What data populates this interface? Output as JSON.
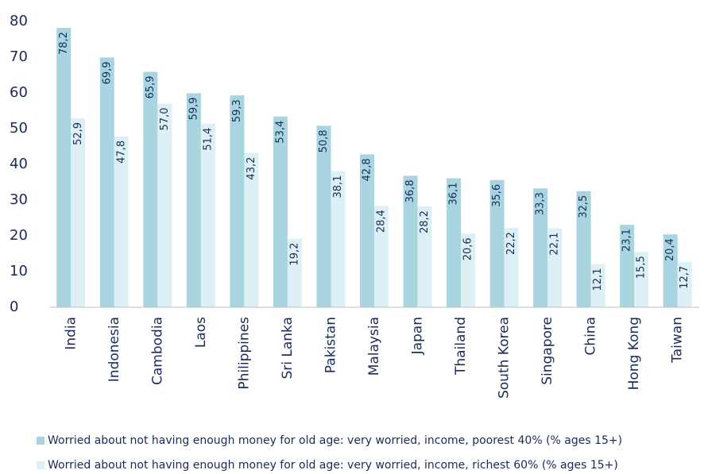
{
  "chart_data": {
    "type": "bar",
    "categories": [
      "India",
      "Indonesia",
      "Cambodia",
      "Laos",
      "Philippines",
      "Sri Lanka",
      "Pakistan",
      "Malaysia",
      "Japan",
      "Thailand",
      "South Korea",
      "Singapore",
      "China",
      "Hong Kong",
      "Taiwan"
    ],
    "series": [
      {
        "name": "Worried about not having enough money for old age: very worried, income, poorest 40% (% ages 15+)",
        "color": "#a9d5e1",
        "values": [
          78.2,
          69.9,
          65.9,
          59.9,
          59.3,
          53.4,
          50.8,
          42.8,
          36.8,
          36.1,
          35.6,
          33.3,
          32.5,
          23.1,
          20.4
        ],
        "value_labels": [
          "78,2",
          "69,9",
          "65,9",
          "59,9",
          "59,3",
          "53,4",
          "50,8",
          "42,8",
          "36,8",
          "36,1",
          "35,6",
          "33,3",
          "32,5",
          "23,1",
          "20,4"
        ]
      },
      {
        "name": "Worried about not having enough money for old age: very worried, income, richest 60% (% ages 15+)",
        "color": "#ddf0f5",
        "values": [
          52.9,
          47.8,
          57.0,
          51.4,
          43.2,
          19.2,
          38.1,
          28.4,
          28.2,
          20.6,
          22.2,
          22.1,
          12.1,
          15.5,
          12.7
        ],
        "value_labels": [
          "52,9",
          "47,8",
          "57,0",
          "51,4",
          "43,2",
          "19,2",
          "38,1",
          "28,4",
          "28,2",
          "20,6",
          "22,2",
          "22,1",
          "12,1",
          "15,5",
          "12,7"
        ]
      }
    ],
    "ylim": [
      0,
      80
    ],
    "yticks": [
      0,
      10,
      20,
      30,
      40,
      50,
      60,
      70,
      80
    ]
  }
}
